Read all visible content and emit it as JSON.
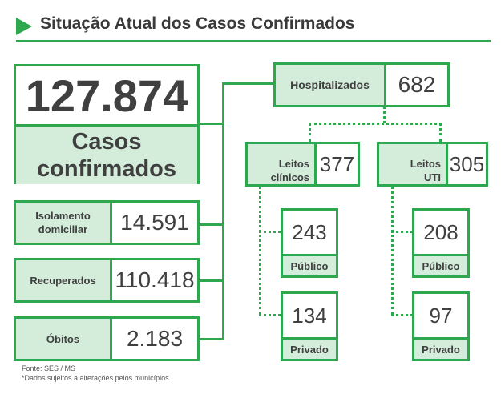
{
  "title": "Situação Atual dos Casos Confirmados",
  "colors": {
    "accent": "#2ea84f",
    "label_bg": "#d4eddb",
    "text": "#3f3f3f"
  },
  "icons": {
    "title_marker": "triangle-right-icon"
  },
  "confirmed": {
    "value": "127.874",
    "label_line1": "Casos",
    "label_line2": "confirmados"
  },
  "isolamento": {
    "label_line1": "Isolamento",
    "label_line2": "domiciliar",
    "value": "14.591"
  },
  "recuperados": {
    "label": "Recuperados",
    "value": "110.418"
  },
  "obitos": {
    "label": "Óbitos",
    "value": "2.183"
  },
  "hospitalizados": {
    "label": "Hospitalizados",
    "value": "682"
  },
  "leitos_clinicos": {
    "label_line1": "Leitos",
    "label_line2": "clínicos",
    "value": "377",
    "publico": {
      "value": "243",
      "label": "Público"
    },
    "privado": {
      "value": "134",
      "label": "Privado"
    }
  },
  "leitos_uti": {
    "label_line1": "Leitos",
    "label_line2": "UTI",
    "value": "305",
    "publico": {
      "value": "208",
      "label": "Público"
    },
    "privado": {
      "value": "97",
      "label": "Privado"
    }
  },
  "footer": {
    "source": "Fonte: SES / MS",
    "note": "*Dados sujeitos a alterações pelos municípios."
  }
}
